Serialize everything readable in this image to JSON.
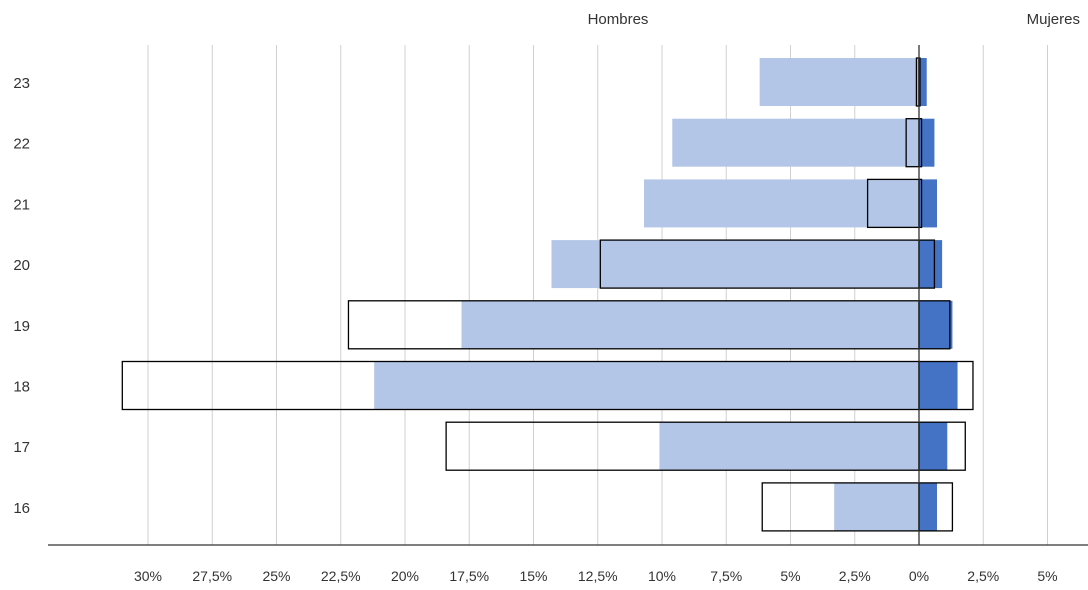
{
  "chart_data": {
    "type": "bar",
    "orientation": "horizontal",
    "layout": "population-pyramid",
    "header_left": "Hombres",
    "header_right": "Mujeres",
    "categories": [
      "23",
      "22",
      "21",
      "20",
      "19",
      "18",
      "17",
      "16"
    ],
    "xlim": [
      -32.5,
      5
    ],
    "x_ticks": [
      -30,
      -27.5,
      -25,
      -22.5,
      -20,
      -17.5,
      -15,
      -12.5,
      -10,
      -7.5,
      -5,
      -2.5,
      0,
      2.5,
      5
    ],
    "x_tick_labels": [
      "30%",
      "27,5%",
      "25%",
      "22,5%",
      "20%",
      "17,5%",
      "15%",
      "12,5%",
      "10%",
      "7,5%",
      "5%",
      "2,5%",
      "0%",
      "2,5%",
      "5%"
    ],
    "grid": true,
    "series": [
      {
        "side": "Hombres",
        "style": "filled",
        "color": "#b4c6e7",
        "values": [
          -6.2,
          -9.6,
          -10.7,
          -14.3,
          -17.8,
          -21.2,
          -10.1,
          -3.3
        ]
      },
      {
        "side": "Mujeres",
        "style": "filled",
        "color": "#4472c4",
        "values": [
          0.3,
          0.6,
          0.7,
          0.9,
          1.3,
          1.5,
          1.1,
          0.7
        ]
      },
      {
        "side": "Hombres",
        "style": "outline",
        "color": "#000000",
        "values": [
          -0.1,
          -0.5,
          -2.0,
          -12.4,
          -22.2,
          -31.0,
          -18.4,
          -6.1
        ]
      },
      {
        "side": "Mujeres",
        "style": "outline",
        "color": "#000000",
        "values": [
          0.0,
          0.1,
          0.1,
          0.6,
          1.2,
          2.1,
          1.8,
          1.3
        ]
      }
    ]
  }
}
